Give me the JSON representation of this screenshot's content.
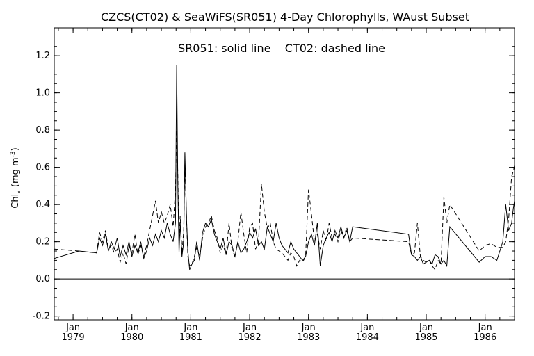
{
  "chart_data": {
    "type": "line",
    "title": "CZCS(CT02) & SeaWiFS(SR051) 4-Day Chlorophylls, WAust Subset",
    "annotation": "SR051: solid line    CT02: dashed line",
    "ylabel_main": "Chl",
    "ylabel_sub": "a",
    "ylabel_unit_pre": " (mg m",
    "ylabel_unit_sup": "-3",
    "ylabel_unit_post": ")",
    "ylim": [
      -0.22,
      1.35
    ],
    "yticks": [
      -0.2,
      0.0,
      0.2,
      0.4,
      0.6,
      0.8,
      1.0,
      1.2
    ],
    "ytick_labels": [
      "-0.2",
      "0.0",
      "0.2",
      "0.4",
      "0.6",
      "0.8",
      "1.0",
      "1.2"
    ],
    "xlim": [
      1978.68,
      1986.5
    ],
    "xticks": [
      1979,
      1980,
      1981,
      1982,
      1983,
      1984,
      1985,
      1986
    ],
    "xtick_month": "Jan",
    "xtick_years": [
      "1979",
      "1980",
      "1981",
      "1982",
      "1983",
      "1984",
      "1985",
      "1986"
    ],
    "zero_line": true,
    "series": [
      {
        "name": "SR051",
        "style": "solid",
        "x": [
          1978.68,
          1979.1,
          1979.4,
          1979.45,
          1979.5,
          1979.55,
          1979.6,
          1979.65,
          1979.7,
          1979.75,
          1979.8,
          1979.85,
          1979.9,
          1979.95,
          1980.0,
          1980.05,
          1980.1,
          1980.15,
          1980.2,
          1980.25,
          1980.3,
          1980.35,
          1980.4,
          1980.45,
          1980.5,
          1980.55,
          1980.6,
          1980.65,
          1980.7,
          1980.74,
          1980.76,
          1980.78,
          1980.8,
          1980.82,
          1980.85,
          1980.88,
          1980.9,
          1980.93,
          1980.95,
          1980.98,
          1981.02,
          1981.06,
          1981.1,
          1981.15,
          1981.2,
          1981.25,
          1981.3,
          1981.35,
          1981.4,
          1981.45,
          1981.5,
          1981.55,
          1981.6,
          1981.65,
          1981.7,
          1981.75,
          1981.8,
          1981.85,
          1981.9,
          1981.95,
          1982.0,
          1982.05,
          1982.1,
          1982.15,
          1982.2,
          1982.25,
          1982.3,
          1982.35,
          1982.4,
          1982.45,
          1982.5,
          1982.55,
          1982.6,
          1982.65,
          1982.7,
          1982.75,
          1982.8,
          1982.85,
          1982.9,
          1982.95,
          1983.0,
          1983.05,
          1983.1,
          1983.15,
          1983.2,
          1983.25,
          1983.3,
          1983.35,
          1983.4,
          1983.45,
          1983.5,
          1983.55,
          1983.6,
          1983.65,
          1983.7,
          1983.75,
          1984.7,
          1984.75,
          1984.8,
          1984.85,
          1984.9,
          1984.95,
          1985.0,
          1985.05,
          1985.1,
          1985.15,
          1985.2,
          1985.25,
          1985.3,
          1985.35,
          1985.4,
          1985.9,
          1986.0,
          1986.1,
          1986.2,
          1986.3,
          1986.35,
          1986.4,
          1986.45,
          1986.48,
          1986.5
        ],
        "values": [
          0.11,
          0.15,
          0.14,
          0.22,
          0.18,
          0.24,
          0.15,
          0.2,
          0.16,
          0.22,
          0.12,
          0.18,
          0.13,
          0.2,
          0.12,
          0.18,
          0.14,
          0.2,
          0.11,
          0.15,
          0.22,
          0.18,
          0.24,
          0.2,
          0.26,
          0.22,
          0.3,
          0.24,
          0.2,
          0.3,
          1.15,
          0.5,
          0.14,
          0.3,
          0.12,
          0.2,
          0.68,
          0.3,
          0.15,
          0.05,
          0.08,
          0.1,
          0.2,
          0.1,
          0.25,
          0.3,
          0.28,
          0.32,
          0.24,
          0.2,
          0.16,
          0.22,
          0.13,
          0.2,
          0.18,
          0.12,
          0.2,
          0.14,
          0.16,
          0.2,
          0.25,
          0.22,
          0.27,
          0.18,
          0.2,
          0.16,
          0.28,
          0.24,
          0.2,
          0.3,
          0.22,
          0.18,
          0.16,
          0.14,
          0.2,
          0.16,
          0.14,
          0.12,
          0.1,
          0.12,
          0.2,
          0.24,
          0.18,
          0.3,
          0.07,
          0.18,
          0.22,
          0.25,
          0.2,
          0.26,
          0.22,
          0.28,
          0.22,
          0.26,
          0.2,
          0.28,
          0.24,
          0.13,
          0.12,
          0.1,
          0.12,
          0.08,
          0.09,
          0.1,
          0.08,
          0.13,
          0.12,
          0.08,
          0.1,
          0.07,
          0.28,
          0.09,
          0.12,
          0.12,
          0.1,
          0.2,
          0.4,
          0.26,
          0.3,
          0.38,
          0.42
        ]
      },
      {
        "name": "CT02",
        "style": "dashed",
        "x": [
          1978.68,
          1979.1,
          1979.4,
          1979.45,
          1979.5,
          1979.55,
          1979.6,
          1979.65,
          1979.7,
          1979.75,
          1979.8,
          1979.85,
          1979.9,
          1979.95,
          1980.0,
          1980.05,
          1980.1,
          1980.15,
          1980.2,
          1980.25,
          1980.3,
          1980.35,
          1980.4,
          1980.45,
          1980.5,
          1980.55,
          1980.6,
          1980.65,
          1980.7,
          1980.74,
          1980.76,
          1980.78,
          1980.8,
          1980.82,
          1980.85,
          1980.88,
          1980.9,
          1980.93,
          1980.95,
          1980.98,
          1981.02,
          1981.06,
          1981.1,
          1981.15,
          1981.2,
          1981.25,
          1981.3,
          1981.35,
          1981.4,
          1981.45,
          1981.5,
          1981.55,
          1981.6,
          1981.65,
          1981.7,
          1981.75,
          1981.8,
          1981.85,
          1981.9,
          1981.95,
          1982.0,
          1982.05,
          1982.1,
          1982.15,
          1982.2,
          1982.25,
          1982.3,
          1982.35,
          1982.4,
          1982.45,
          1982.5,
          1982.55,
          1982.6,
          1982.65,
          1982.7,
          1982.75,
          1982.8,
          1982.85,
          1982.9,
          1982.95,
          1983.0,
          1983.05,
          1983.1,
          1983.15,
          1983.2,
          1983.25,
          1983.3,
          1983.35,
          1983.4,
          1983.45,
          1983.5,
          1983.55,
          1983.6,
          1983.65,
          1983.7,
          1983.75,
          1984.7,
          1984.75,
          1984.8,
          1984.85,
          1984.9,
          1984.95,
          1985.0,
          1985.05,
          1985.1,
          1985.15,
          1985.2,
          1985.25,
          1985.3,
          1985.35,
          1985.4,
          1985.9,
          1986.0,
          1986.1,
          1986.2,
          1986.3,
          1986.35,
          1986.4,
          1986.45,
          1986.48,
          1986.5
        ],
        "values": [
          0.16,
          0.15,
          0.14,
          0.25,
          0.2,
          0.26,
          0.16,
          0.18,
          0.14,
          0.16,
          0.09,
          0.14,
          0.08,
          0.18,
          0.14,
          0.24,
          0.13,
          0.18,
          0.12,
          0.18,
          0.26,
          0.34,
          0.42,
          0.3,
          0.36,
          0.3,
          0.34,
          0.4,
          0.28,
          0.48,
          0.8,
          0.55,
          0.2,
          0.34,
          0.14,
          0.26,
          0.62,
          0.3,
          0.12,
          0.07,
          0.08,
          0.12,
          0.17,
          0.12,
          0.22,
          0.28,
          0.3,
          0.34,
          0.26,
          0.22,
          0.14,
          0.18,
          0.13,
          0.3,
          0.16,
          0.12,
          0.2,
          0.36,
          0.24,
          0.14,
          0.28,
          0.3,
          0.16,
          0.2,
          0.51,
          0.36,
          0.27,
          0.3,
          0.2,
          0.16,
          0.15,
          0.14,
          0.12,
          0.1,
          0.14,
          0.12,
          0.07,
          0.1,
          0.09,
          0.12,
          0.48,
          0.35,
          0.2,
          0.24,
          0.16,
          0.26,
          0.2,
          0.3,
          0.22,
          0.24,
          0.2,
          0.26,
          0.22,
          0.28,
          0.2,
          0.22,
          0.2,
          0.13,
          0.14,
          0.3,
          0.12,
          0.1,
          0.09,
          0.1,
          0.07,
          0.05,
          0.1,
          0.08,
          0.44,
          0.3,
          0.4,
          0.15,
          0.18,
          0.19,
          0.17,
          0.17,
          0.2,
          0.32,
          0.55,
          0.58,
          0.61
        ]
      }
    ]
  }
}
